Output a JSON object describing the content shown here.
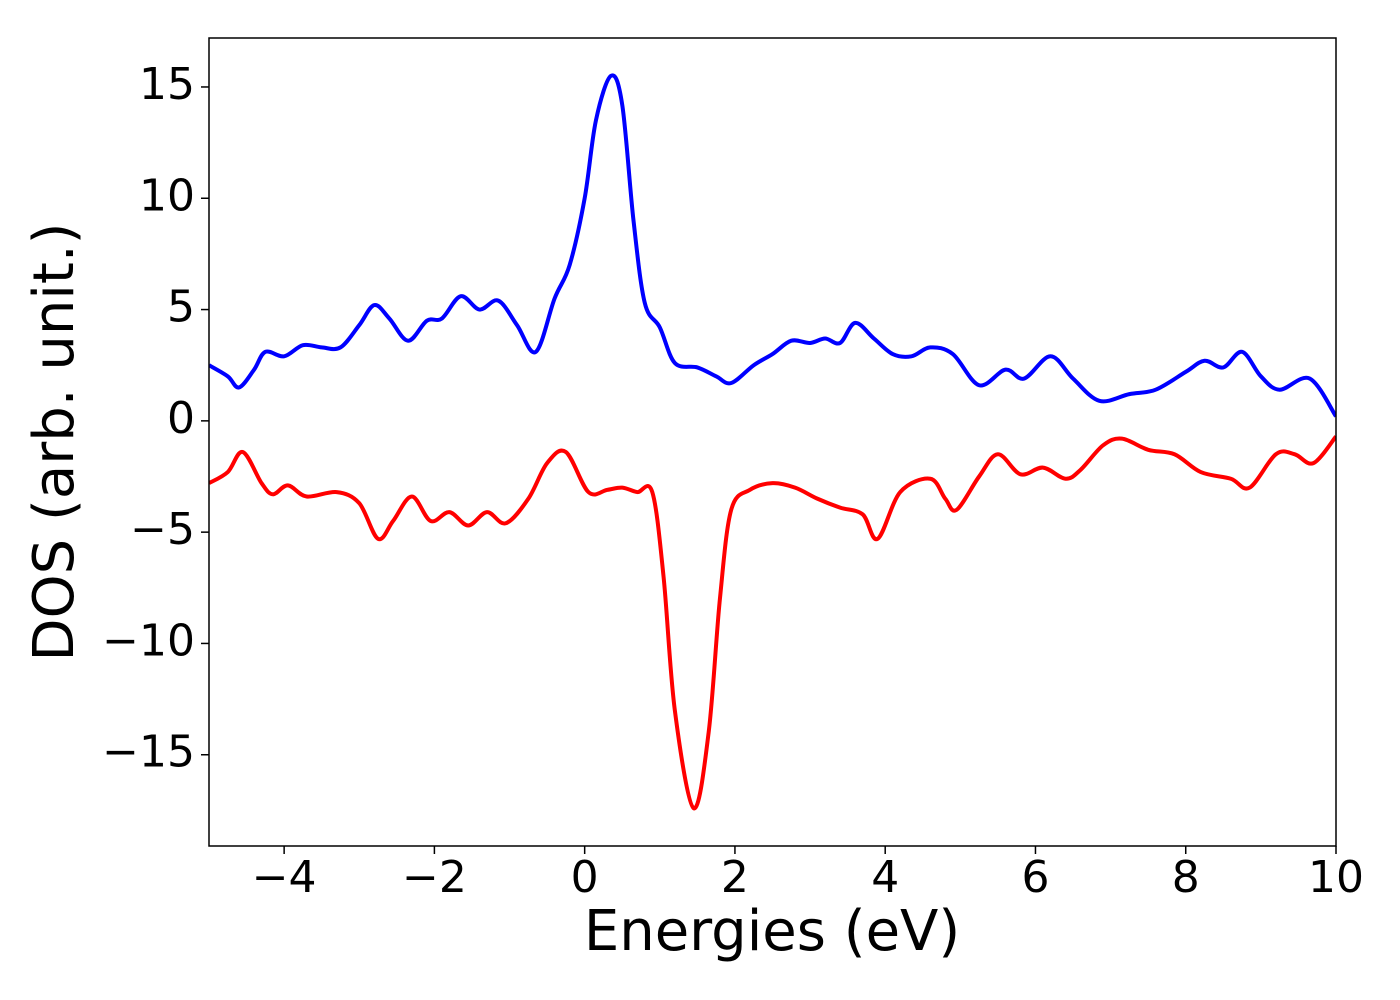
{
  "chart_data": {
    "type": "line",
    "x_label": "Energies (eV)",
    "y_label": "DOS (arb. unit.)",
    "xlim": [
      -5,
      10
    ],
    "ylim": [
      -19.1,
      17.2
    ],
    "xticks": [
      {
        "value": -4,
        "label": "−4"
      },
      {
        "value": -2,
        "label": "−2"
      },
      0,
      2,
      4,
      6,
      8,
      10
    ],
    "yticks": [
      {
        "value": -15,
        "label": "−15"
      },
      {
        "value": -10,
        "label": "−10"
      },
      {
        "value": -5,
        "label": "−5"
      },
      0,
      5,
      10,
      15
    ],
    "grid": false,
    "series": [
      {
        "color": "#0000ff",
        "x": [
          -5,
          -4.75,
          -4.6,
          -4.4,
          -4.25,
          -4.0,
          -3.75,
          -3.5,
          -3.25,
          -3.0,
          -2.8,
          -2.6,
          -2.35,
          -2.1,
          -1.9,
          -1.65,
          -1.4,
          -1.15,
          -0.9,
          -0.65,
          -0.4,
          -0.2,
          0,
          0.15,
          0.35,
          0.5,
          0.65,
          0.8,
          1.0,
          1.2,
          1.5,
          1.75,
          1.95,
          2.25,
          2.5,
          2.75,
          3.0,
          3.2,
          3.4,
          3.6,
          3.85,
          4.1,
          4.35,
          4.6,
          4.9,
          5.25,
          5.6,
          5.85,
          6.2,
          6.5,
          6.85,
          7.25,
          7.6,
          8.0,
          8.25,
          8.5,
          8.75,
          9.0,
          9.25,
          9.65,
          10.0
        ],
        "values": [
          2.5,
          2.0,
          1.5,
          2.3,
          3.1,
          2.9,
          3.4,
          3.3,
          3.3,
          4.3,
          5.2,
          4.6,
          3.6,
          4.5,
          4.6,
          5.6,
          5.0,
          5.4,
          4.3,
          3.1,
          5.5,
          7.0,
          10,
          13.5,
          15.5,
          14.2,
          9,
          5.3,
          4.2,
          2.6,
          2.4,
          2.0,
          1.7,
          2.5,
          3.0,
          3.6,
          3.5,
          3.7,
          3.5,
          4.4,
          3.7,
          3.0,
          2.9,
          3.3,
          3.0,
          1.6,
          2.3,
          1.9,
          2.9,
          1.9,
          0.9,
          1.2,
          1.4,
          2.2,
          2.7,
          2.4,
          3.1,
          2.0,
          1.4,
          1.9,
          0.2
        ]
      },
      {
        "color": "#ff0000",
        "x": [
          -5,
          -4.75,
          -4.55,
          -4.3,
          -4.15,
          -3.95,
          -3.7,
          -3.3,
          -3.0,
          -2.75,
          -2.55,
          -2.3,
          -2.05,
          -1.8,
          -1.55,
          -1.3,
          -1.05,
          -0.75,
          -0.5,
          -0.25,
          0.05,
          0.3,
          0.5,
          0.7,
          0.9,
          1.05,
          1.2,
          1.45,
          1.65,
          1.8,
          1.95,
          2.2,
          2.5,
          2.8,
          3.1,
          3.4,
          3.7,
          3.9,
          4.2,
          4.6,
          4.8,
          4.95,
          5.25,
          5.5,
          5.8,
          6.1,
          6.4,
          6.6,
          6.9,
          7.15,
          7.5,
          7.85,
          8.2,
          8.6,
          8.85,
          9.2,
          9.45,
          9.7,
          10.0
        ],
        "values": [
          -2.8,
          -2.3,
          -1.4,
          -2.8,
          -3.3,
          -2.9,
          -3.4,
          -3.2,
          -3.7,
          -5.3,
          -4.5,
          -3.4,
          -4.5,
          -4.1,
          -4.7,
          -4.1,
          -4.6,
          -3.5,
          -1.9,
          -1.4,
          -3.2,
          -3.1,
          -3.0,
          -3.2,
          -3.2,
          -7,
          -13,
          -17.4,
          -14,
          -8,
          -4,
          -3.1,
          -2.8,
          -3.0,
          -3.5,
          -3.9,
          -4.2,
          -5.3,
          -3.2,
          -2.6,
          -3.5,
          -4.0,
          -2.5,
          -1.5,
          -2.4,
          -2.1,
          -2.6,
          -2.2,
          -1.1,
          -0.8,
          -1.3,
          -1.5,
          -2.3,
          -2.6,
          -3.0,
          -1.5,
          -1.5,
          -1.9,
          -0.7
        ]
      }
    ]
  }
}
